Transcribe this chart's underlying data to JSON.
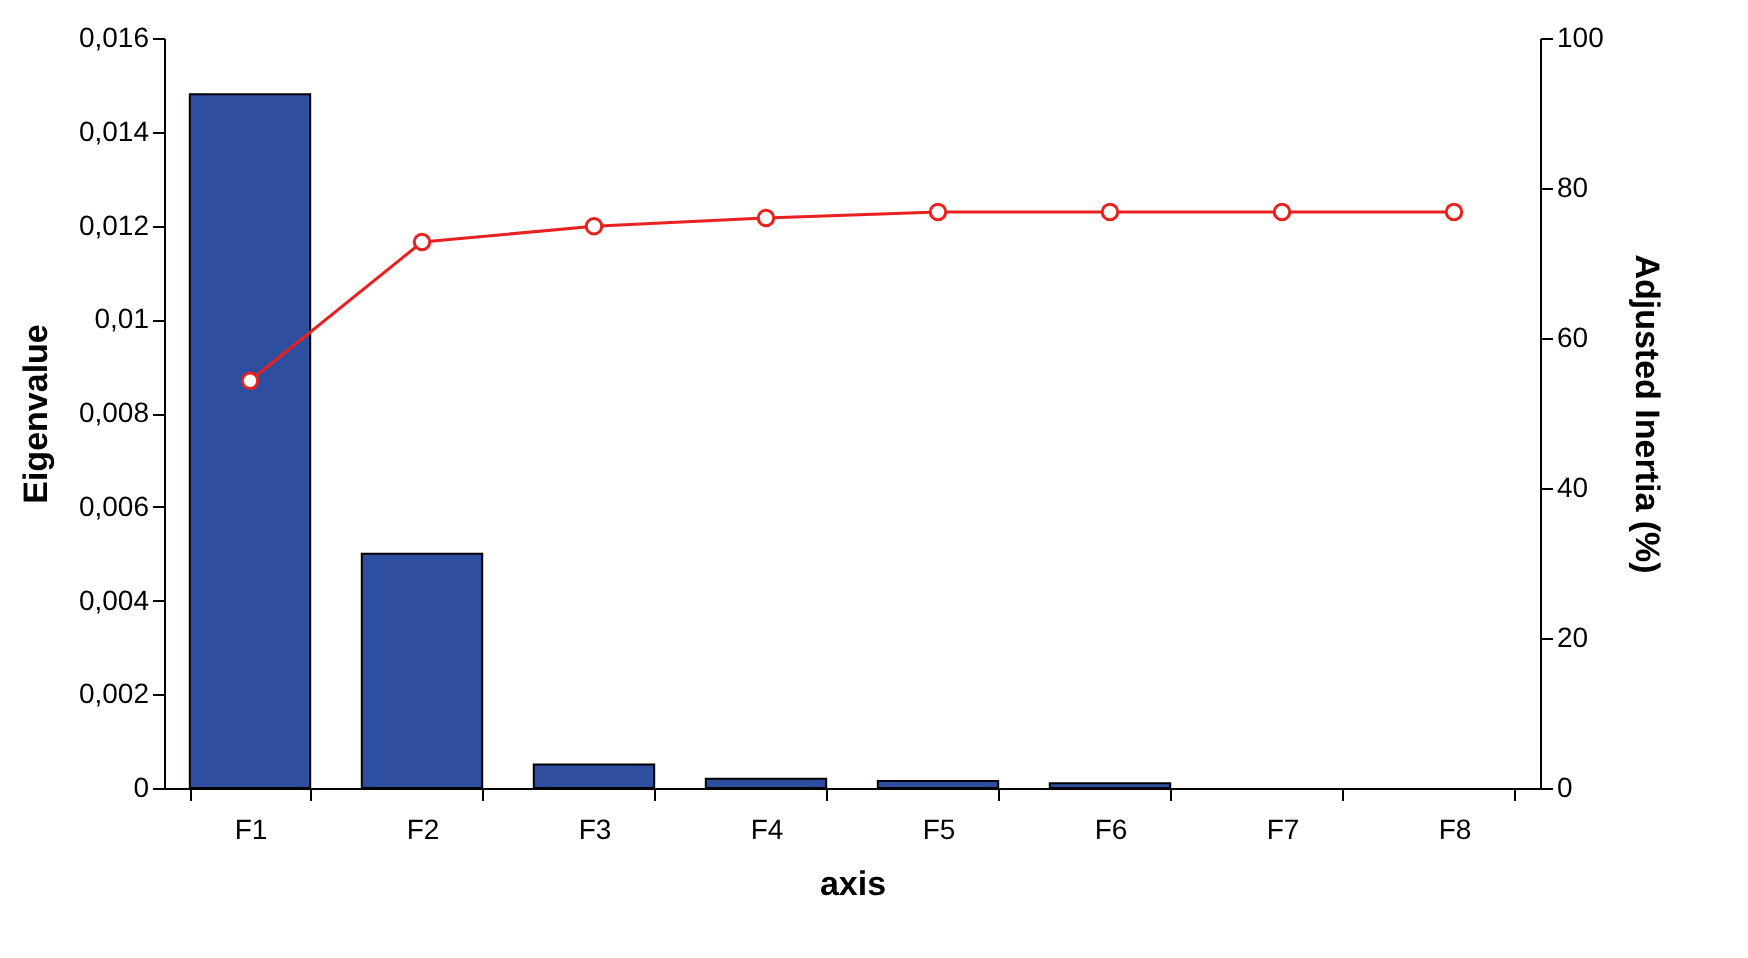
{
  "chart_data": {
    "type": "bar",
    "xlabel": "axis",
    "ylabel": "Eigenvalue",
    "y2label": "Adjusted Inertia (%)",
    "categories": [
      "F1",
      "F2",
      "F3",
      "F4",
      "F5",
      "F6",
      "F7",
      "F8"
    ],
    "series": [
      {
        "color": "#2e4fa0",
        "values": [
          0.0148,
          0.005,
          0.0005,
          0.0002,
          0.00015,
          0.0001,
          0,
          0
        ]
      },
      {
        "type": "line",
        "axis": "y2",
        "color": "#e8201f",
        "marker": "circle",
        "values": [
          54.3,
          72.8,
          74.9,
          76.0,
          76.8,
          76.8,
          76.8,
          76.8
        ]
      }
    ],
    "ylim": [
      0,
      0.016
    ],
    "yticks": [
      0,
      {
        "value": 0.002,
        "label": "0,002"
      },
      {
        "value": 0.004,
        "label": "0,004"
      },
      {
        "value": 0.006,
        "label": "0,006"
      },
      {
        "value": 0.008,
        "label": "0,008"
      },
      {
        "value": 0.01,
        "label": "0,01"
      },
      {
        "value": 0.012,
        "label": "0,012"
      },
      {
        "value": 0.014,
        "label": "0,014"
      },
      {
        "value": 0.016,
        "label": "0,016"
      }
    ],
    "y2lim": [
      0,
      100
    ],
    "y2ticks": [
      0,
      20,
      40,
      60,
      80,
      100
    ],
    "grid": false
  }
}
